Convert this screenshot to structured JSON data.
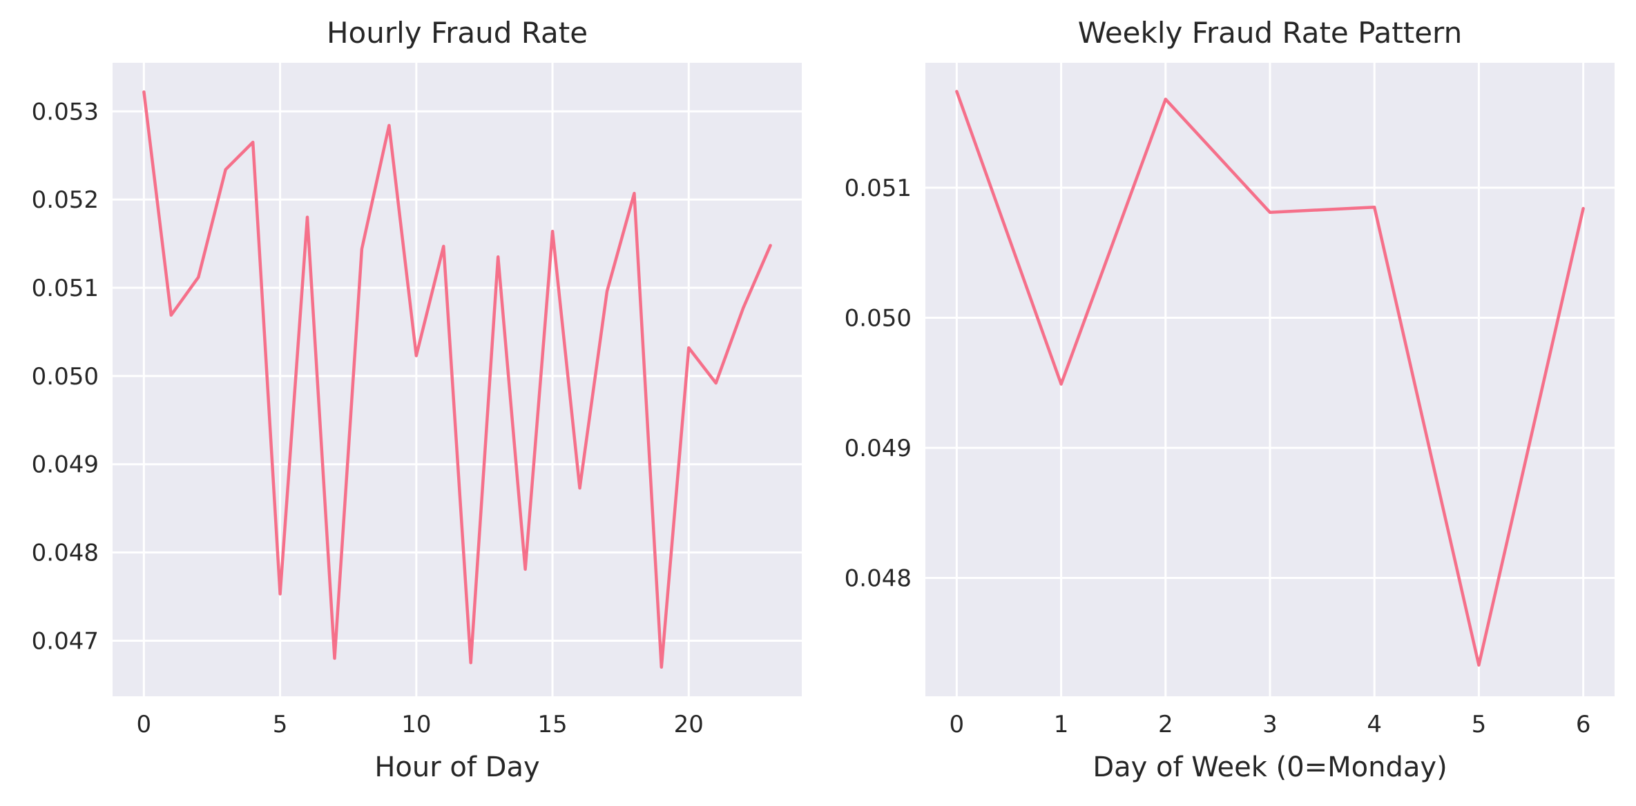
{
  "colors": {
    "background": "#eaeaf2",
    "grid": "#ffffff",
    "line": "#f5708a",
    "text": "#262626"
  },
  "chart_data": [
    {
      "type": "line",
      "title": "Hourly Fraud Rate",
      "xlabel": "Hour of Day",
      "ylabel": "",
      "grid": true,
      "xlim": [
        -1.15,
        24.15
      ],
      "ylim": [
        0.04637,
        0.05355
      ],
      "xticks": [
        0,
        5,
        10,
        15,
        20
      ],
      "xtick_labels": [
        "0",
        "5",
        "10",
        "15",
        "20"
      ],
      "yticks": [
        0.047,
        0.048,
        0.049,
        0.05,
        0.051,
        0.052,
        0.053
      ],
      "ytick_labels": [
        "0.047",
        "0.048",
        "0.049",
        "0.050",
        "0.051",
        "0.052",
        "0.053"
      ],
      "series": [
        {
          "x": [
            0,
            1,
            2,
            3,
            4,
            5,
            6,
            7,
            8,
            9,
            10,
            11,
            12,
            13,
            14,
            15,
            16,
            17,
            18,
            19,
            20,
            21,
            22,
            23
          ],
          "values": [
            0.05322,
            0.05069,
            0.05112,
            0.05234,
            0.05265,
            0.04753,
            0.0518,
            0.0468,
            0.05144,
            0.05284,
            0.05023,
            0.05147,
            0.04675,
            0.05135,
            0.04781,
            0.05164,
            0.04873,
            0.05096,
            0.05207,
            0.0467,
            0.05032,
            0.04992,
            0.05077,
            0.05148
          ]
        }
      ]
    },
    {
      "type": "line",
      "title": "Weekly Fraud Rate Pattern",
      "xlabel": "Day of Week (0=Monday)",
      "ylabel": "",
      "grid": true,
      "xlim": [
        -0.3,
        6.3
      ],
      "ylim": [
        0.04709,
        0.05196
      ],
      "xticks": [
        0,
        1,
        2,
        3,
        4,
        5,
        6
      ],
      "xtick_labels": [
        "0",
        "1",
        "2",
        "3",
        "4",
        "5",
        "6"
      ],
      "yticks": [
        0.048,
        0.049,
        0.05,
        0.051
      ],
      "ytick_labels": [
        "0.048",
        "0.049",
        "0.050",
        "0.051"
      ],
      "series": [
        {
          "x": [
            0,
            1,
            2,
            3,
            4,
            5,
            6
          ],
          "values": [
            0.05174,
            0.04949,
            0.05168,
            0.05081,
            0.05085,
            0.04733,
            0.05084
          ]
        }
      ]
    }
  ]
}
